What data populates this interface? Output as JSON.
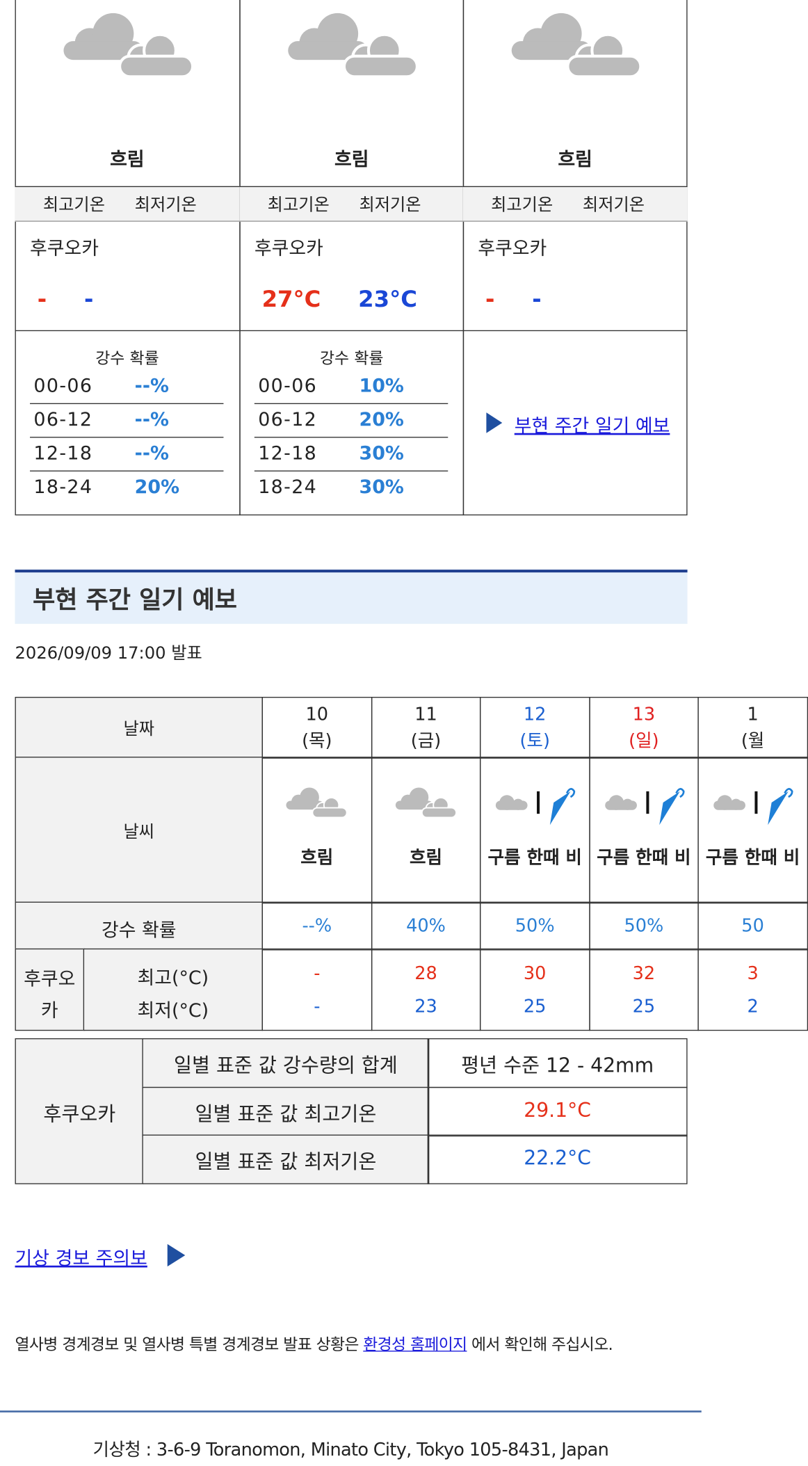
{
  "daily_cards": [
    {
      "weather": "흐림",
      "header_high": "최고기온",
      "header_low": "최저기온",
      "location": "후쿠오카",
      "high": "-",
      "low": "-",
      "precip_title": "강수 확률",
      "precip": [
        {
          "time": "00-06",
          "value": "--%"
        },
        {
          "time": "06-12",
          "value": "--%"
        },
        {
          "time": "12-18",
          "value": "--%"
        },
        {
          "time": "18-24",
          "value": "20%"
        }
      ]
    },
    {
      "weather": "흐림",
      "header_high": "최고기온",
      "header_low": "최저기온",
      "location": "후쿠오카",
      "high": "27°C",
      "low": "23°C",
      "precip_title": "강수 확률",
      "precip": [
        {
          "time": "00-06",
          "value": "10%"
        },
        {
          "time": "06-12",
          "value": "20%"
        },
        {
          "time": "12-18",
          "value": "30%"
        },
        {
          "time": "18-24",
          "value": "30%"
        }
      ]
    },
    {
      "weather": "흐림",
      "header_high": "최고기온",
      "header_low": "최저기온",
      "location": "후쿠오카",
      "high": "-",
      "low": "-",
      "link": "부현 주간 일기 예보"
    }
  ],
  "weekly": {
    "title": "부현 주간 일기 예보",
    "issued": "2026/09/09 17:00 발표",
    "header_date": "날짜",
    "header_weather": "날씨",
    "header_precip": "강수 확률",
    "location": "후쿠오카",
    "high_label": "최고(°C)",
    "low_label": "최저(°C)",
    "days": [
      {
        "day": "10",
        "dow": "(목)",
        "weather": "흐림",
        "precip": "--%",
        "high": "-",
        "low": "-"
      },
      {
        "day": "11",
        "dow": "(금)",
        "weather": "흐림",
        "precip": "40%",
        "high": "28",
        "low": "23"
      },
      {
        "day": "12",
        "dow": "(토)",
        "weather": "구름 한때 비",
        "precip": "50%",
        "high": "30",
        "low": "25"
      },
      {
        "day": "13",
        "dow": "(일)",
        "weather": "구름 한때 비",
        "precip": "50%",
        "high": "32",
        "low": "25"
      },
      {
        "day": "1",
        "dow": "(월",
        "weather": "구름 한때 비",
        "precip": "50",
        "high": "3",
        "low": "2"
      }
    ]
  },
  "normals": {
    "location": "후쿠오카",
    "rows": [
      {
        "label": "일별 표준 값 강수량의 합계",
        "value": "평년 수준 12 - 42mm"
      },
      {
        "label": "일별 표준 값 최고기온",
        "value": "29.1°C"
      },
      {
        "label": "일별 표준 값 최저기온",
        "value": "22.2°C"
      }
    ]
  },
  "warning_link": "기상 경보 주의보",
  "notice": {
    "before": "열사병 경계경보 및 열사병 특별 경계경보 발표 상황은 ",
    "link": "환경성 홈페이지",
    "after": " 에서 확인해 주십시오."
  },
  "footer": "기상청 : 3-6-9 Toranomon, Minato City, Tokyo 105-8431, Japan"
}
